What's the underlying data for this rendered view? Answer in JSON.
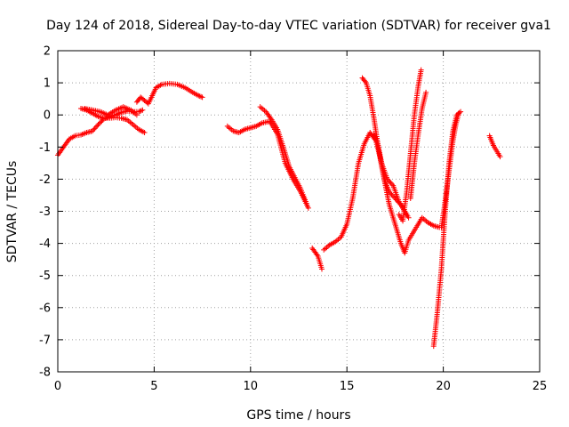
{
  "chart_data": {
    "type": "scatter",
    "title": "Day 124 of 2018, Sidereal Day-to-day VTEC variation (SDTVAR) for receiver gva1",
    "xlabel": "GPS time / hours",
    "ylabel": "SDTVAR / TECUs",
    "xlim": [
      0,
      25
    ],
    "ylim": [
      -8,
      2
    ],
    "xticks": [
      0,
      5,
      10,
      15,
      20,
      25
    ],
    "yticks": [
      -8,
      -7,
      -6,
      -5,
      -4,
      -3,
      -2,
      -1,
      0,
      1,
      2
    ],
    "grid": true,
    "marker": "plus",
    "color": "#ff0000",
    "series": [
      {
        "x": [
          0.0,
          0.3,
          0.6,
          0.9,
          1.2,
          1.5,
          1.8,
          2.1,
          2.4,
          2.7,
          3.0,
          3.3,
          3.6,
          3.9,
          4.2,
          4.4
        ],
        "y": [
          -1.25,
          -1.0,
          -0.75,
          -0.65,
          -0.62,
          -0.55,
          -0.5,
          -0.3,
          -0.12,
          -0.05,
          0.0,
          0.08,
          0.12,
          0.1,
          0.1,
          0.15
        ]
      },
      {
        "x": [
          1.2,
          1.5,
          1.8,
          2.1,
          2.4,
          2.7,
          3.0,
          3.3,
          3.6,
          3.9,
          4.2,
          4.5
        ],
        "y": [
          0.2,
          0.15,
          0.05,
          -0.05,
          -0.1,
          -0.1,
          -0.08,
          -0.1,
          -0.15,
          -0.3,
          -0.45,
          -0.55
        ]
      },
      {
        "x": [
          1.4,
          1.8,
          2.2,
          2.6,
          3.0,
          3.4,
          3.8,
          4.1
        ],
        "y": [
          0.2,
          0.15,
          0.1,
          0.0,
          0.15,
          0.25,
          0.15,
          0.0
        ]
      },
      {
        "x": [
          4.1,
          4.3,
          4.5,
          4.7,
          4.9,
          5.1,
          5.4,
          5.8,
          6.2,
          6.6,
          7.0,
          7.3,
          7.5
        ],
        "y": [
          0.4,
          0.55,
          0.45,
          0.35,
          0.6,
          0.85,
          0.95,
          0.98,
          0.95,
          0.85,
          0.7,
          0.6,
          0.55
        ]
      },
      {
        "x": [
          8.8,
          9.1,
          9.4,
          9.7,
          10.0,
          10.3,
          10.6,
          11.0,
          11.4,
          11.8,
          12.2,
          12.6,
          13.0
        ],
        "y": [
          -0.35,
          -0.5,
          -0.55,
          -0.45,
          -0.4,
          -0.35,
          -0.25,
          -0.2,
          -0.6,
          -1.5,
          -2.0,
          -2.4,
          -2.9
        ]
      },
      {
        "x": [
          10.5,
          10.8,
          11.1,
          11.4,
          11.7,
          12.0,
          12.3,
          12.6,
          12.9
        ],
        "y": [
          0.25,
          0.1,
          -0.15,
          -0.45,
          -1.0,
          -1.6,
          -1.95,
          -2.3,
          -2.75
        ]
      },
      {
        "x": [
          13.2,
          13.5,
          13.7
        ],
        "y": [
          -4.15,
          -4.4,
          -4.8
        ]
      },
      {
        "x": [
          13.8,
          14.1,
          14.4,
          14.7,
          15.0,
          15.3,
          15.6,
          15.9,
          16.2,
          16.5,
          16.8,
          17.1,
          17.4,
          17.7,
          18.0,
          18.2
        ],
        "y": [
          -4.2,
          -4.05,
          -3.95,
          -3.8,
          -3.4,
          -2.6,
          -1.5,
          -0.9,
          -0.55,
          -0.8,
          -1.5,
          -2.0,
          -2.2,
          -2.7,
          -3.0,
          -3.2
        ]
      },
      {
        "x": [
          15.8,
          16.0,
          16.2,
          16.4,
          16.6,
          16.8,
          17.0,
          17.2,
          17.5,
          17.8,
          18.0,
          18.2,
          18.5,
          18.9,
          19.2,
          19.5,
          19.8
        ],
        "y": [
          1.15,
          1.0,
          0.6,
          -0.1,
          -0.9,
          -1.6,
          -2.2,
          -2.8,
          -3.4,
          -4.0,
          -4.3,
          -3.9,
          -3.6,
          -3.2,
          -3.35,
          -3.45,
          -3.5
        ]
      },
      {
        "x": [
          16.4,
          16.6,
          16.8,
          17.0,
          17.2,
          17.5,
          17.8,
          18.0,
          18.1
        ],
        "y": [
          -0.6,
          -0.9,
          -1.5,
          -2.1,
          -2.4,
          -2.6,
          -2.8,
          -3.0,
          -3.1
        ]
      },
      {
        "x": [
          17.7,
          17.9,
          18.1,
          18.3,
          18.5,
          18.7,
          18.85
        ],
        "y": [
          -3.1,
          -3.3,
          -2.4,
          -1.2,
          0.0,
          0.9,
          1.4
        ]
      },
      {
        "x": [
          18.3,
          18.5,
          18.7,
          18.9,
          19.1
        ],
        "y": [
          -2.6,
          -1.5,
          -0.6,
          0.2,
          0.7
        ]
      },
      {
        "x": [
          19.5,
          19.7,
          19.9,
          20.1,
          20.3,
          20.5,
          20.7,
          20.9
        ],
        "y": [
          -7.2,
          -6.1,
          -4.8,
          -3.0,
          -1.5,
          -0.5,
          0.0,
          0.1
        ]
      },
      {
        "x": [
          19.9,
          20.05,
          20.2,
          20.35,
          20.5,
          20.65,
          20.8
        ],
        "y": [
          -3.5,
          -2.9,
          -2.2,
          -1.5,
          -0.8,
          -0.3,
          0.05
        ]
      },
      {
        "x": [
          22.4,
          22.6,
          22.8,
          22.95
        ],
        "y": [
          -0.65,
          -0.95,
          -1.15,
          -1.3
        ]
      }
    ]
  }
}
